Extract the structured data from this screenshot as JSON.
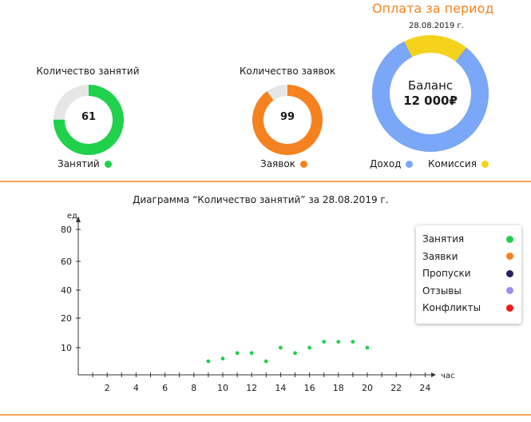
{
  "lessons_card": {
    "title": "Количество занятий",
    "value": "61",
    "legend_label": "Занятий",
    "fraction": 0.75,
    "color": "#1fd14b",
    "track_color": "#e6e6e6"
  },
  "requests_card": {
    "title": "Количество заявок",
    "value": "99",
    "legend_label": "Заявок",
    "fraction": 0.9,
    "color": "#f5821f",
    "track_color": "#e6e6e6"
  },
  "period_card": {
    "title": "Оплата за период",
    "date": "28.08.2019 г.",
    "balance_label": "Баланс",
    "balance_value": "12 000₽",
    "income_label": "Доход",
    "commission_label": "Комиссия",
    "income_fraction": 0.82,
    "income_color": "#7aa7f7",
    "commission_color": "#f5d31d"
  },
  "chart_data": {
    "type": "scatter",
    "title": "Диаграмма “Количество занятий” за 28.08.2019 г.",
    "ylabel": "ед.",
    "xlabel": "час",
    "xlim": [
      0,
      24
    ],
    "ylim": [
      0,
      80
    ],
    "x_ticks": [
      2,
      4,
      6,
      8,
      10,
      12,
      14,
      16,
      18,
      20,
      22,
      24
    ],
    "y_ticks": [
      10,
      20,
      40,
      60,
      80
    ],
    "series": [
      {
        "name": "Занятия",
        "color": "#1fd14b",
        "points": [
          [
            9,
            5
          ],
          [
            10,
            6
          ],
          [
            11,
            8
          ],
          [
            12,
            8
          ],
          [
            13,
            5
          ],
          [
            14,
            10
          ],
          [
            15,
            8
          ],
          [
            16,
            10
          ],
          [
            17,
            12
          ],
          [
            18,
            12
          ],
          [
            19,
            12
          ],
          [
            20,
            10
          ]
        ]
      }
    ],
    "legend": [
      {
        "label": "Занятия",
        "color": "#1fd14b"
      },
      {
        "label": "Заявки",
        "color": "#f5821f"
      },
      {
        "label": "Пропуски",
        "color": "#2a2260"
      },
      {
        "label": "Отзывы",
        "color": "#9c8ff2"
      },
      {
        "label": "Конфликты",
        "color": "#f01919"
      }
    ],
    "legend_position": "top-right",
    "grid": false
  }
}
